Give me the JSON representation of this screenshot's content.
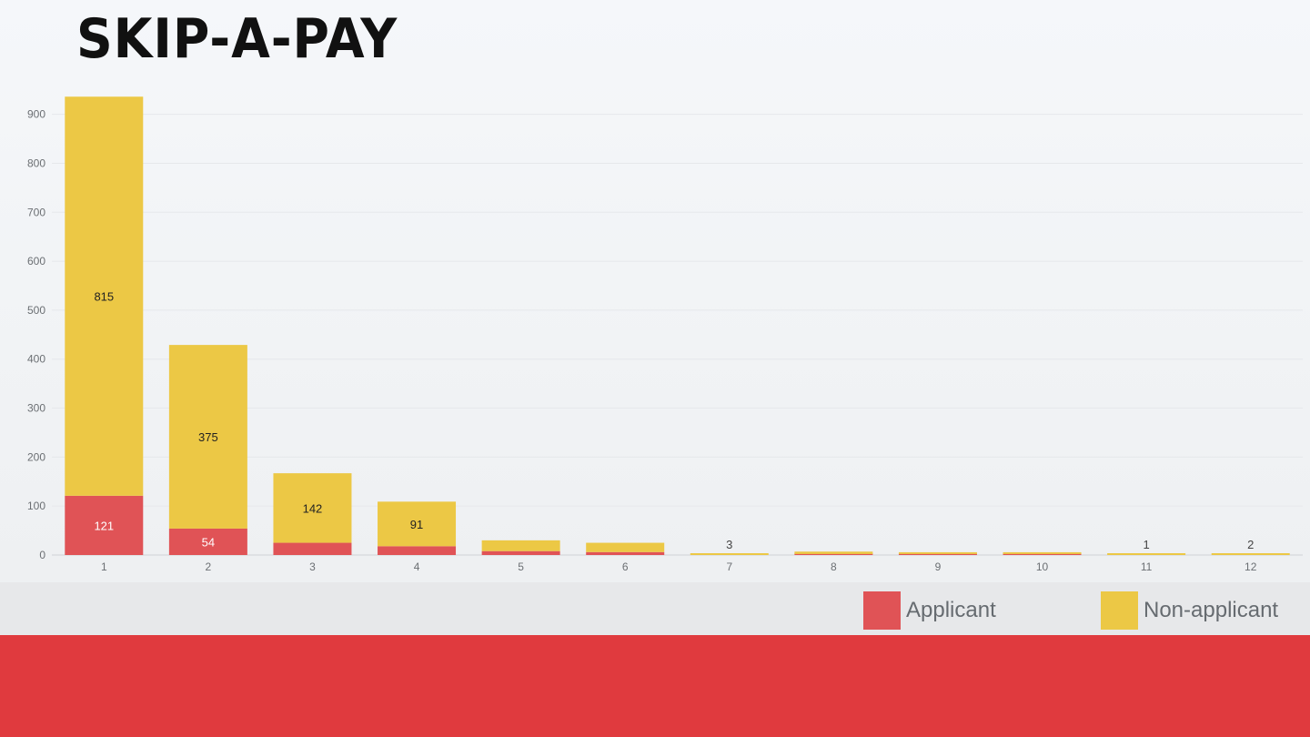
{
  "slide": {
    "title": "SKIP-A-PAY"
  },
  "colors": {
    "applicant": "#e05356",
    "non_applicant": "#ecc845",
    "footer": "#e03a3e",
    "legend_band": "#e7e8ea"
  },
  "legend": {
    "applicant": "Applicant",
    "non_applicant": "Non-applicant"
  },
  "chart_data": {
    "type": "bar",
    "stacked": true,
    "title": "",
    "xlabel": "",
    "ylabel": "",
    "categories": [
      "1",
      "2",
      "3",
      "4",
      "5",
      "6",
      "7",
      "8",
      "9",
      "10",
      "11",
      "12"
    ],
    "ylim": [
      0,
      950
    ],
    "yticks": [
      0,
      100,
      200,
      300,
      400,
      500,
      600,
      700,
      800,
      900
    ],
    "grid": true,
    "legend_position": "bottom-right",
    "series": [
      {
        "name": "Applicant",
        "values": [
          121,
          54,
          25,
          18,
          8,
          6,
          0,
          2,
          2,
          2,
          0,
          0
        ]
      },
      {
        "name": "Non-applicant",
        "values": [
          815,
          375,
          142,
          91,
          22,
          19,
          3,
          5,
          3,
          3,
          1,
          2
        ]
      }
    ],
    "data_labels": {
      "Applicant": [
        "121",
        "54",
        "",
        "",
        "",
        "",
        "",
        "",
        "",
        "",
        "",
        ""
      ],
      "Non-applicant": [
        "815",
        "375",
        "142",
        "91",
        "",
        "",
        "3",
        "",
        "",
        "",
        "1",
        "2"
      ]
    }
  }
}
